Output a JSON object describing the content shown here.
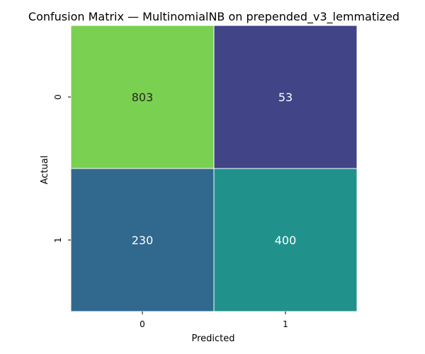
{
  "chart_data": {
    "type": "heatmap",
    "title": "Confusion Matrix — MultinomialNB on prepended_v3_lemmatized",
    "xlabel": "Predicted",
    "ylabel": "Actual",
    "x_categories": [
      "0",
      "1"
    ],
    "y_categories": [
      "0",
      "1"
    ],
    "values": [
      [
        803,
        53
      ],
      [
        230,
        400
      ]
    ],
    "colormap": "viridis",
    "vmin": 53,
    "vmax": 803,
    "colorbar": false,
    "annotations": true,
    "colors": {
      "cells": [
        [
          "#7ad151",
          "#414487"
        ],
        [
          "#31688e",
          "#21918c"
        ]
      ],
      "label_dark": "#262626",
      "label_light": "#ffffff",
      "grid_line": "#ffffff"
    }
  }
}
